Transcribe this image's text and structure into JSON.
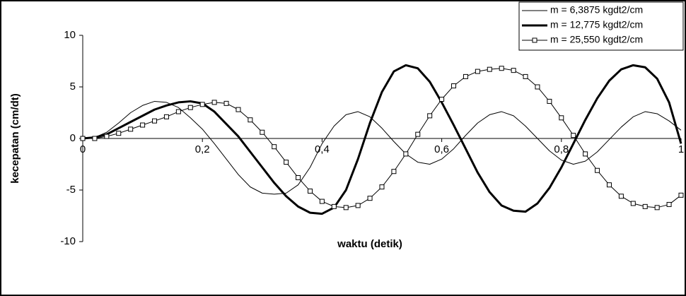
{
  "chart_data": {
    "type": "line",
    "xlabel": "waktu (detik)",
    "ylabel": "kecepatan (cm/dt)",
    "x": [
      0,
      0.02,
      0.04,
      0.06,
      0.08,
      0.1,
      0.12,
      0.14,
      0.16,
      0.18,
      0.2,
      0.22,
      0.24,
      0.26,
      0.28,
      0.3,
      0.32,
      0.34,
      0.36,
      0.38,
      0.4,
      0.42,
      0.44,
      0.46,
      0.48,
      0.5,
      0.52,
      0.54,
      0.56,
      0.58,
      0.6,
      0.62,
      0.64,
      0.66,
      0.68,
      0.7,
      0.72,
      0.74,
      0.76,
      0.78,
      0.8,
      0.82,
      0.84,
      0.86,
      0.88,
      0.9,
      0.92,
      0.94,
      0.96,
      0.98,
      1
    ],
    "series": [
      {
        "name": "m = 6,3875 kgdt2/cm",
        "color": "#000000",
        "width": 1,
        "values": [
          0,
          0.1,
          0.6,
          1.5,
          2.5,
          3.2,
          3.6,
          3.5,
          3.0,
          2.0,
          0.9,
          -0.5,
          -2.0,
          -3.5,
          -4.7,
          -5.3,
          -5.4,
          -5.3,
          -4.5,
          -2.8,
          -0.5,
          1.2,
          2.3,
          2.6,
          2.1,
          1.0,
          -0.3,
          -1.5,
          -2.3,
          -2.5,
          -2.0,
          -1.0,
          0.3,
          1.5,
          2.3,
          2.6,
          2.2,
          1.2,
          0,
          -1.2,
          -2.1,
          -2.5,
          -2.2,
          -1.3,
          -0.1,
          1.1,
          2.1,
          2.6,
          2.4,
          1.7,
          0.8
        ]
      },
      {
        "name": "m = 12,775 kgdt2/cm",
        "color": "#000000",
        "width": 3,
        "values": [
          0,
          0.1,
          0.4,
          1.0,
          1.6,
          2.2,
          2.8,
          3.2,
          3.5,
          3.6,
          3.4,
          2.6,
          1.4,
          0.2,
          -1.3,
          -2.8,
          -4.3,
          -5.6,
          -6.6,
          -7.2,
          -7.3,
          -6.7,
          -5.0,
          -2.0,
          1.5,
          4.5,
          6.5,
          7.1,
          6.8,
          5.5,
          3.5,
          1.3,
          -1.0,
          -3.3,
          -5.2,
          -6.5,
          -7.0,
          -7.1,
          -6.3,
          -4.8,
          -2.8,
          -0.5,
          1.8,
          3.9,
          5.6,
          6.7,
          7.1,
          6.9,
          5.8,
          3.5,
          -0.5
        ]
      },
      {
        "name": "m = 25,550 kgdt2/cm",
        "color": "#000000",
        "width": 1,
        "marker": "square",
        "values": [
          0,
          0,
          0.2,
          0.5,
          0.9,
          1.3,
          1.7,
          2.1,
          2.6,
          3.0,
          3.3,
          3.5,
          3.4,
          2.8,
          1.8,
          0.6,
          -0.8,
          -2.3,
          -3.8,
          -5.1,
          -6.1,
          -6.6,
          -6.7,
          -6.5,
          -5.8,
          -4.7,
          -3.2,
          -1.5,
          0.4,
          2.2,
          3.8,
          5.1,
          6.0,
          6.5,
          6.7,
          6.8,
          6.6,
          6.0,
          5.0,
          3.6,
          2.0,
          0.3,
          -1.5,
          -3.1,
          -4.5,
          -5.6,
          -6.3,
          -6.6,
          -6.7,
          -6.4,
          -5.5
        ]
      }
    ],
    "xlim": [
      0,
      1
    ],
    "xticks": [
      0,
      {
        "value": 0.2,
        "label": "0,2"
      },
      {
        "value": 0.4,
        "label": "0,4"
      },
      {
        "value": 0.6,
        "label": "0,6"
      },
      {
        "value": 0.8,
        "label": "0,8"
      },
      1
    ],
    "ylim": [
      -10,
      10
    ],
    "yticks": [
      -10,
      -5,
      0,
      5,
      10
    ],
    "grid": false,
    "legend": "top-right"
  }
}
